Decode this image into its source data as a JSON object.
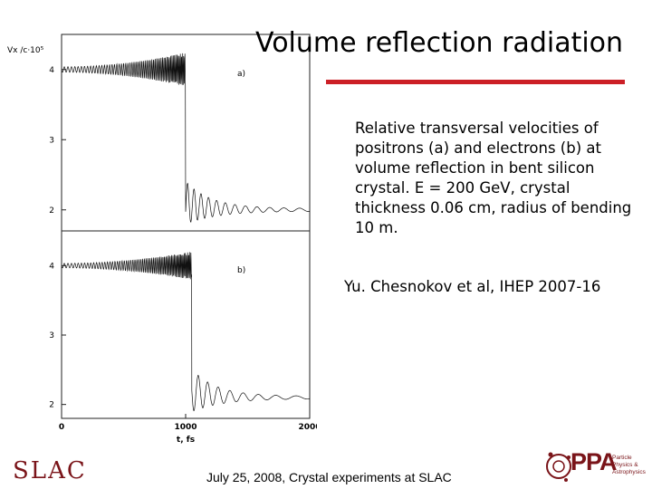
{
  "slide": {
    "title": "Volume reflection radiation",
    "caption": "Relative transversal velocities of positrons (a) and electrons (b) at volume reflection in bent silicon crystal. E = 200 GeV, crystal thickness 0.06 cm, radius of bending 10 m.",
    "reference": "Yu. Chesnokov et al, IHEP 2007-16",
    "footer": "July 25, 2008, Crystal experiments at SLAC",
    "logos": {
      "slac": "SLAC",
      "ppa": "PPA",
      "ppa_sub": "Particle Physics & Astrophysics"
    },
    "accent_color": "#cc1f26"
  },
  "chart_data": [
    {
      "type": "line",
      "panel_label": "a)",
      "ylabel": "Vx /c·10⁵",
      "yticks": [
        2,
        3,
        4
      ],
      "ylim": [
        1.7,
        4.5
      ],
      "xlim": [
        0,
        2000
      ],
      "description_series": {
        "pre_reflection_center": 4.0,
        "post_reflection_center": 2.0,
        "reflection_t": 1000
      }
    },
    {
      "type": "line",
      "panel_label": "b)",
      "xlabel": "t, fs",
      "xticks": [
        0,
        1000,
        2000
      ],
      "yticks": [
        2,
        3,
        4
      ],
      "ylim": [
        1.8,
        4.5
      ],
      "xlim": [
        0,
        2000
      ],
      "description_series": {
        "pre_reflection_center": 4.0,
        "post_reflection_center": 2.1,
        "reflection_t": 1050
      }
    }
  ]
}
